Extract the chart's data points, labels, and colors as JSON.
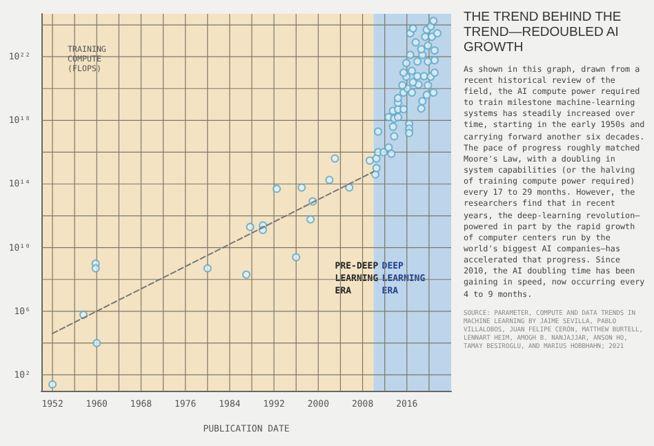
{
  "chart_data": {
    "type": "scatter",
    "title": "THE TREND BEHIND THE TREND—REDOUBLED AI GROWTH",
    "xlabel": "PUBLICATION DATE",
    "ylabel": "TRAINING COMPUTE (FLOPS)",
    "annotations": [
      "As shown in this graph, drawn from a recent historical review of the field, the AI compute power required to train milestone machine-learning systems has steadily increased over time, starting in the early 1950s and carrying forward another six decades. The pace of progress roughly matched Moore's Law, with a doubling in system capabilities (or the halving of training compute power required) every 17 to 29 months. However, the researchers find that in recent years, the deep-learning revolution–powered in part by the rapid growth of computer centers run by the world's biggest AI companies–has accelerated that progress. Since 2010, the AI doubling time has been gaining in speed, now occurring every 4 to 9 months.",
      "SOURCE: PARAMETER, COMPUTE AND DATA TRENDS IN MACHINE LEARNING BY JAIME SEVILLA, PABLO VILLALOBOS, JUAN FELIPE CERÓN, MATTHEW BURTELL, LENNART HEIM, AMOGH B. NANJAJJAR, ANSON HO, TAMAY BESIROGLU, AND MARIUS HOBBHAHN; 2021"
    ],
    "log": "y",
    "grid": true,
    "marker": "circle",
    "xlim": [
      1950,
      2024
    ],
    "xticks": [
      1952,
      {
        "value": 1956,
        "label": null
      },
      1960,
      {
        "value": 1964,
        "label": null
      },
      1968,
      {
        "value": 1972,
        "label": null
      },
      1976,
      {
        "value": 1980,
        "label": null
      },
      1984,
      {
        "value": 1988,
        "label": null
      },
      1992,
      {
        "value": 1996,
        "label": null
      },
      2000,
      {
        "value": 2004,
        "label": null
      },
      2008,
      {
        "value": 2012,
        "label": null
      },
      2016,
      {
        "value": 2020,
        "label": null
      }
    ],
    "ylim": [
      10,
      5e+24
    ],
    "yticks": [
      {
        "value": 100,
        "label": "10²"
      },
      {
        "value": 10000.0,
        "label": null
      },
      {
        "value": 1000000.0,
        "label": "10⁶"
      },
      {
        "value": 100000000.0,
        "label": null
      },
      {
        "value": 10000000000.0,
        "label": "10¹⁰"
      },
      {
        "value": 1000000000000.0,
        "label": null
      },
      {
        "value": 100000000000000.0,
        "label": "10¹⁴"
      },
      {
        "value": 1e+16,
        "label": null
      },
      {
        "value": 1e+18,
        "label": "10¹⁸"
      },
      {
        "value": 1e+20,
        "label": null
      },
      {
        "value": 1e+22,
        "label": "10²²"
      },
      {
        "value": 1e+24,
        "label": null
      }
    ],
    "bands": [
      {
        "axis": "x",
        "from": 1950,
        "to": 2010,
        "label": "PRE-DEEP LEARNING ERA",
        "color": "#f3e3c3"
      },
      {
        "axis": "x",
        "from": 2010,
        "to": 2024,
        "label": "DEEP LEARNING ERA",
        "color": "#bcd5ea"
      }
    ],
    "series": [
      {
        "color": "#5aa6c8",
        "x": [
          1952,
          1957.6,
          1959.8,
          1959.8,
          1960,
          1980,
          1987,
          1987.7,
          1990,
          1990,
          1996,
          1998.6,
          1992.5,
          1997,
          1999,
          2002,
          2003,
          2005.6,
          2009.3,
          2010.3,
          2010.5,
          2010.5,
          2010.8,
          2011.8,
          2012.7,
          2013.2,
          2010.8,
          2013.7,
          2013.5,
          2012.7,
          2013.7,
          2014.4,
          2013.5,
          2014.4,
          2015.4,
          2016.4,
          2016.4,
          2016.4,
          2014.4,
          2014.4,
          2015.4,
          2016.1,
          2015.2,
          2016.9,
          2018.6,
          2018.8,
          2019.6,
          2020.8,
          2019.8,
          2018.1,
          2017.1,
          2015.9,
          2015.4,
          2016.9,
          2017.9,
          2019.1,
          2020.3,
          2021,
          2015.9,
          2016.6,
          2017.9,
          2018.8,
          2019.8,
          2021,
          2018.6,
          2019.8,
          2021,
          2017.6,
          2019.3,
          2020.5,
          2021.5,
          2019.6,
          2016.6,
          2017.1,
          2020.3,
          2020.8
        ],
        "values": [
          25,
          600000.0,
          1000000000.0,
          500000000.0,
          10000.0,
          500000000.0,
          200000000.0,
          200000000000.0,
          250000000000.0,
          130000000000.0,
          2500000000.0,
          600000000000.0,
          50000000000000.0,
          60000000000000.0,
          8000000000000.0,
          180000000000000.0,
          4000000000000000.0,
          60000000000000.0,
          3000000000000000.0,
          400000000000000.0,
          1000000000000000.0,
          4000000000000000.0,
          1e+16,
          1e+16,
          2e+16,
          8000000000000000.0,
          2e+17,
          1e+17,
          4e+17,
          1.6e+18,
          1.3e+18,
          1.6e+18,
          4e+18,
          5e+18,
          5e+18,
          6e+17,
          3e+17,
          1.6e+17,
          1.3e+19,
          2.5e+19,
          5.6e+19,
          1e+20,
          1.6e+20,
          5.6e+19,
          5.6e+18,
          1.6e+19,
          4e+19,
          5.6e+19,
          1.6e+20,
          1.8e+20,
          2.5e+20,
          5.6e+20,
          1e+21,
          1.3e+21,
          6e+20,
          6e+20,
          5.6e+20,
          1e+21,
          4e+21,
          1.3e+22,
          5e+21,
          1.3e+22,
          5e+21,
          6e+21,
          3e+22,
          5e+22,
          2.5e+22,
          8e+22,
          1.8e+23,
          1.8e+23,
          3e+23,
          5e+23,
          3e+23,
          6e+23,
          8e+23,
          1.8e+24
        ]
      },
      {
        "type": "line",
        "color": "#777777",
        "line_style": "dashed",
        "marker": "none",
        "x": [
          1952,
          2010
        ],
        "values": [
          40000.0,
          600000000000000.0
        ]
      }
    ]
  }
}
